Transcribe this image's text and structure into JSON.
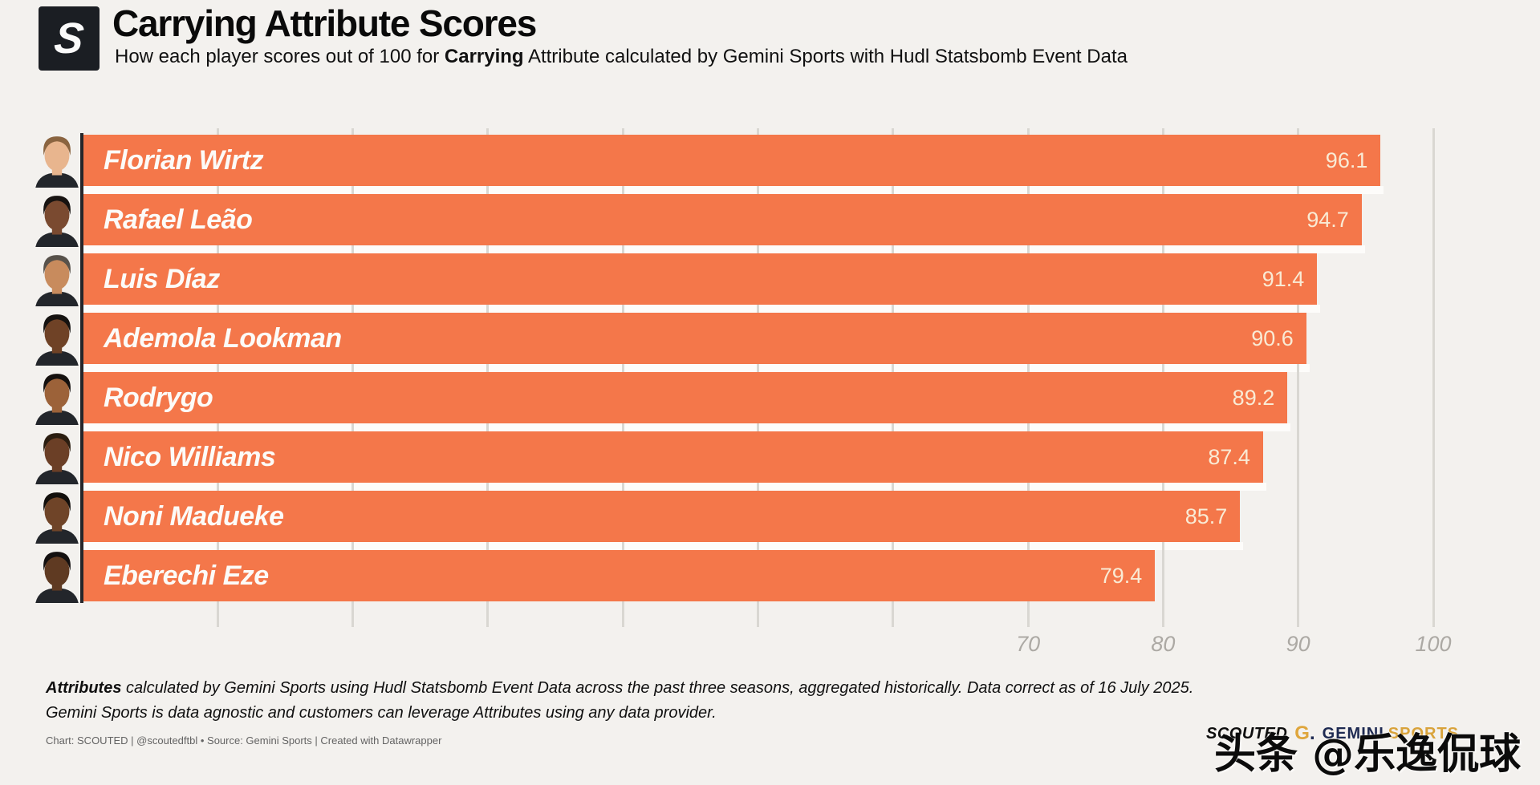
{
  "header": {
    "logo_letter": "S",
    "title": "Carrying Attribute Scores",
    "subtitle_prefix": "How each player scores out of 100 for ",
    "subtitle_bold": "Carrying",
    "subtitle_suffix": " Attribute calculated by Gemini Sports with Hudl Statsbomb Event Data"
  },
  "chart_data": {
    "type": "bar",
    "orientation": "horizontal",
    "title": "Carrying Attribute Scores",
    "categories": [
      "Florian Wirtz",
      "Rafael Leão",
      "Luis Díaz",
      "Ademola Lookman",
      "Rodrygo",
      "Nico Williams",
      "Noni Madueke",
      "Eberechi Eze"
    ],
    "values": [
      96.1,
      94.7,
      91.4,
      90.6,
      89.2,
      87.4,
      85.7,
      79.4
    ],
    "value_labels": [
      "96.1",
      "94.7",
      "91.4",
      "90.6",
      "89.2",
      "87.4",
      "85.7",
      "79.4"
    ],
    "xlim": [
      0,
      102
    ],
    "x_ticks": [
      70,
      80,
      90,
      100
    ],
    "x_tick_labels": [
      "70",
      "80",
      "90",
      "100"
    ],
    "gridline_interval": 10,
    "grid": true,
    "legend": "none",
    "bar_color": "#F4774A",
    "value_label_color": "#F9EBD5",
    "category_label_color": "#FCFBF8"
  },
  "players": [
    {
      "name": "Florian Wirtz",
      "score": "96.1",
      "avatar": {
        "skin": "#E8B58E",
        "hair": "#8A6440"
      }
    },
    {
      "name": "Rafael Leão",
      "score": "94.7",
      "avatar": {
        "skin": "#7A4A30",
        "hair": "#171311"
      }
    },
    {
      "name": "Luis Díaz",
      "score": "91.4",
      "avatar": {
        "skin": "#C88B5D",
        "hair": "#57514A"
      }
    },
    {
      "name": "Ademola Lookman",
      "score": "90.6",
      "avatar": {
        "skin": "#6F4226",
        "hair": "#151210"
      }
    },
    {
      "name": "Rodrygo",
      "score": "89.2",
      "avatar": {
        "skin": "#9C6239",
        "hair": "#14100E"
      }
    },
    {
      "name": "Nico Williams",
      "score": "87.4",
      "avatar": {
        "skin": "#6B3F26",
        "hair": "#2A1D10"
      }
    },
    {
      "name": "Noni Madueke",
      "score": "85.7",
      "avatar": {
        "skin": "#6F4428",
        "hair": "#120F0C"
      }
    },
    {
      "name": "Eberechi Eze",
      "score": "79.4",
      "avatar": {
        "skin": "#5F3A22",
        "hair": "#131010"
      }
    }
  ],
  "avatar_jersey_color": "#23262B",
  "footer": {
    "note_bold": "Attributes",
    "note_line1_rest": " calculated by Gemini Sports using Hudl Statsbomb Event Data across the past three seasons, aggregated historically. Data correct as of 16 July 2025.",
    "note_line2": "Gemini Sports is data agnostic and customers can leverage Attributes using any data provider.",
    "attribution": "Chart: SCOUTED | @scoutedftbl • Source: Gemini Sports | Created with Datawrapper"
  },
  "branding": {
    "scouted_wordmark": "SCOUTED",
    "gemini_g": "G",
    "gemini_g_dot": ".",
    "gemini_word": "GEMINI",
    "sports_word": "SPORTS"
  },
  "watermark": "头条 @乐逸侃球"
}
